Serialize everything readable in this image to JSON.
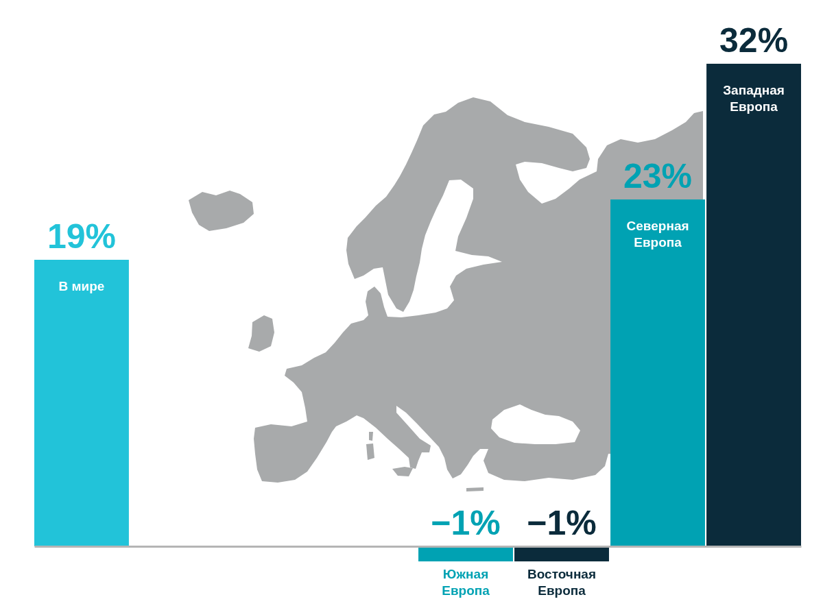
{
  "chart_data": {
    "type": "bar",
    "categories": [
      "В мире",
      null,
      null,
      null,
      "Южная Европа",
      "Восточная Европа",
      "Северная Европа",
      "Западная Европа"
    ],
    "values": [
      19,
      null,
      null,
      null,
      -1,
      -1,
      23,
      32
    ],
    "colors": [
      "#22c3d9",
      null,
      null,
      null,
      "#00a2b3",
      "#0b2b3b",
      "#00a2b3",
      "#0b2b3b"
    ],
    "value_labels": [
      "19%",
      null,
      null,
      null,
      "−1%",
      "−1%",
      "23%",
      "32%"
    ]
  }
}
